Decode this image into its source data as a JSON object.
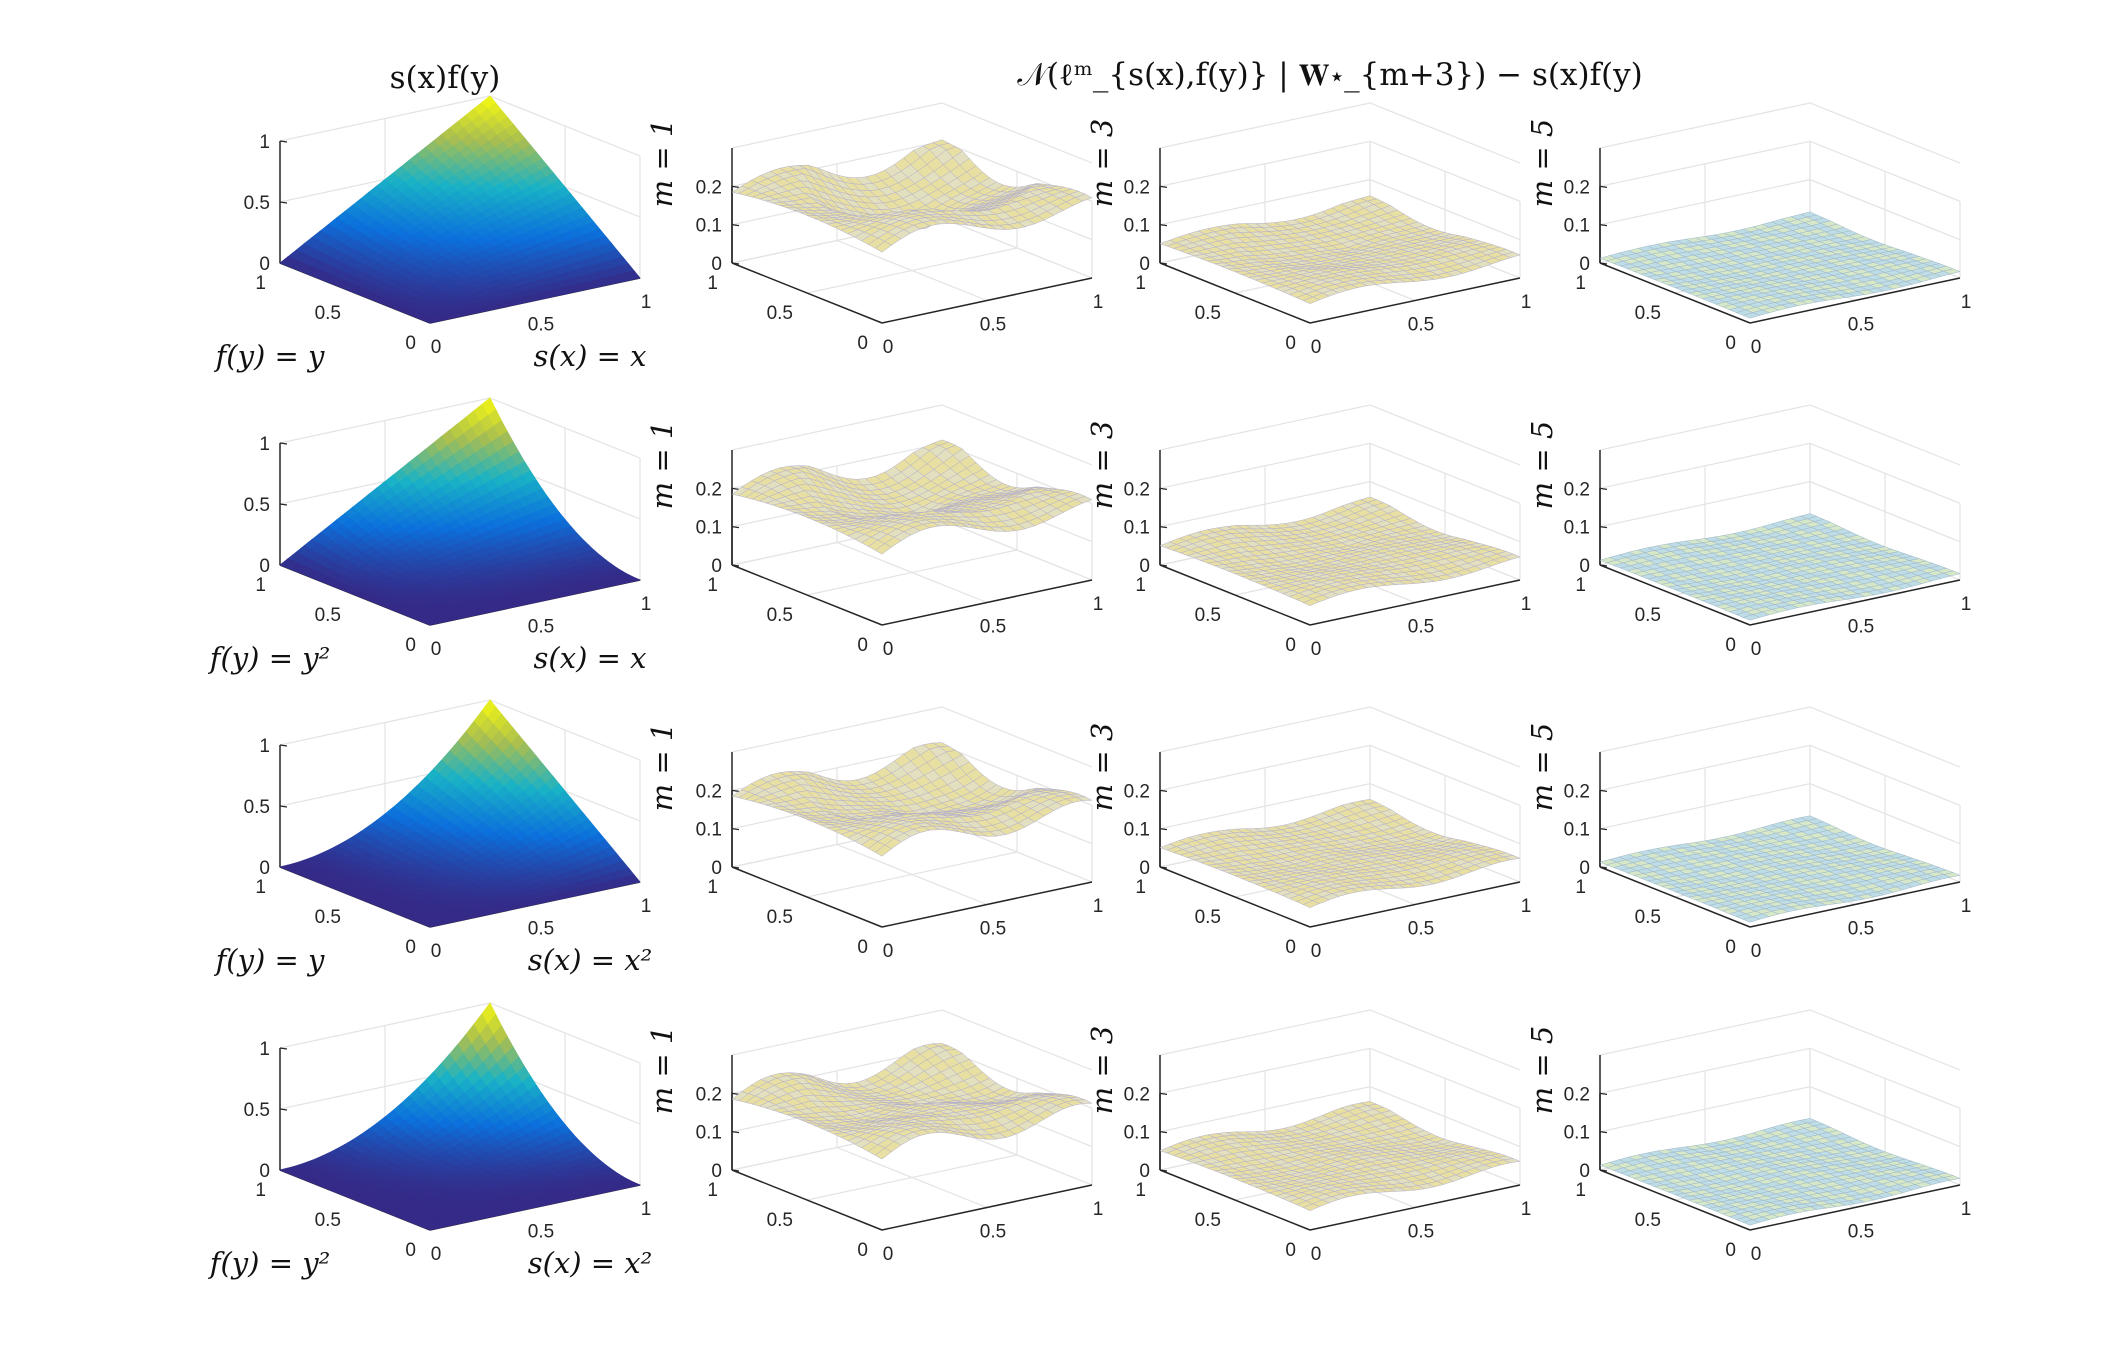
{
  "chart_data": {
    "type": "surface-grid",
    "title_left": "s(x)f(y)",
    "title_right": "𝒩(ℓᵐ_{s(x),f(y)} | 𝐖⋆_{m+3}) − s(x)f(y)",
    "column_labels": [
      "m = 1",
      "m = 3",
      "m = 5"
    ],
    "rows": [
      {
        "f_label": "f(y) = y",
        "s_label": "s(x) = x",
        "f_exp": 1,
        "s_exp": 1
      },
      {
        "f_label": "f(y) = y²",
        "s_label": "s(x) = x",
        "f_exp": 2,
        "s_exp": 1
      },
      {
        "f_label": "f(y) = y",
        "s_label": "s(x) = x²",
        "f_exp": 1,
        "s_exp": 2
      },
      {
        "f_label": "f(y) = y²",
        "s_label": "s(x) = x²",
        "f_exp": 2,
        "s_exp": 2
      }
    ],
    "surface_axes": {
      "x_ticks": [
        "0",
        "0.5",
        "1"
      ],
      "y_ticks": [
        "0",
        "0.5",
        "1"
      ],
      "z_ticks": [
        "0",
        "0.5",
        "1"
      ],
      "zlim": [
        0,
        1
      ]
    },
    "error_axes": {
      "x_ticks": [
        "0",
        "0.5",
        "1"
      ],
      "y_ticks": [
        "0",
        "0.5",
        "1"
      ],
      "z_ticks": [
        "0",
        "0.1",
        "0.2"
      ],
      "zlim": [
        0,
        0.3
      ]
    },
    "error_levels": [
      {
        "m": 1,
        "plateau": 0.22,
        "dip_depth": 0.18,
        "ripple": 0.03
      },
      {
        "m": 3,
        "plateau": 0.06,
        "dip_depth": 0.05,
        "ripple": 0.012
      },
      {
        "m": 5,
        "plateau": 0.015,
        "dip_depth": 0.012,
        "ripple": 0.005
      }
    ],
    "colors": {
      "surface_low": "#352a87",
      "surface_mid": "#19b2c6",
      "surface_high": "#f9fb0e",
      "error_fill": "#e8dfa3",
      "error_line": "#6a6a9a",
      "axis": "#262626",
      "grid": "#e3e3e3"
    }
  }
}
